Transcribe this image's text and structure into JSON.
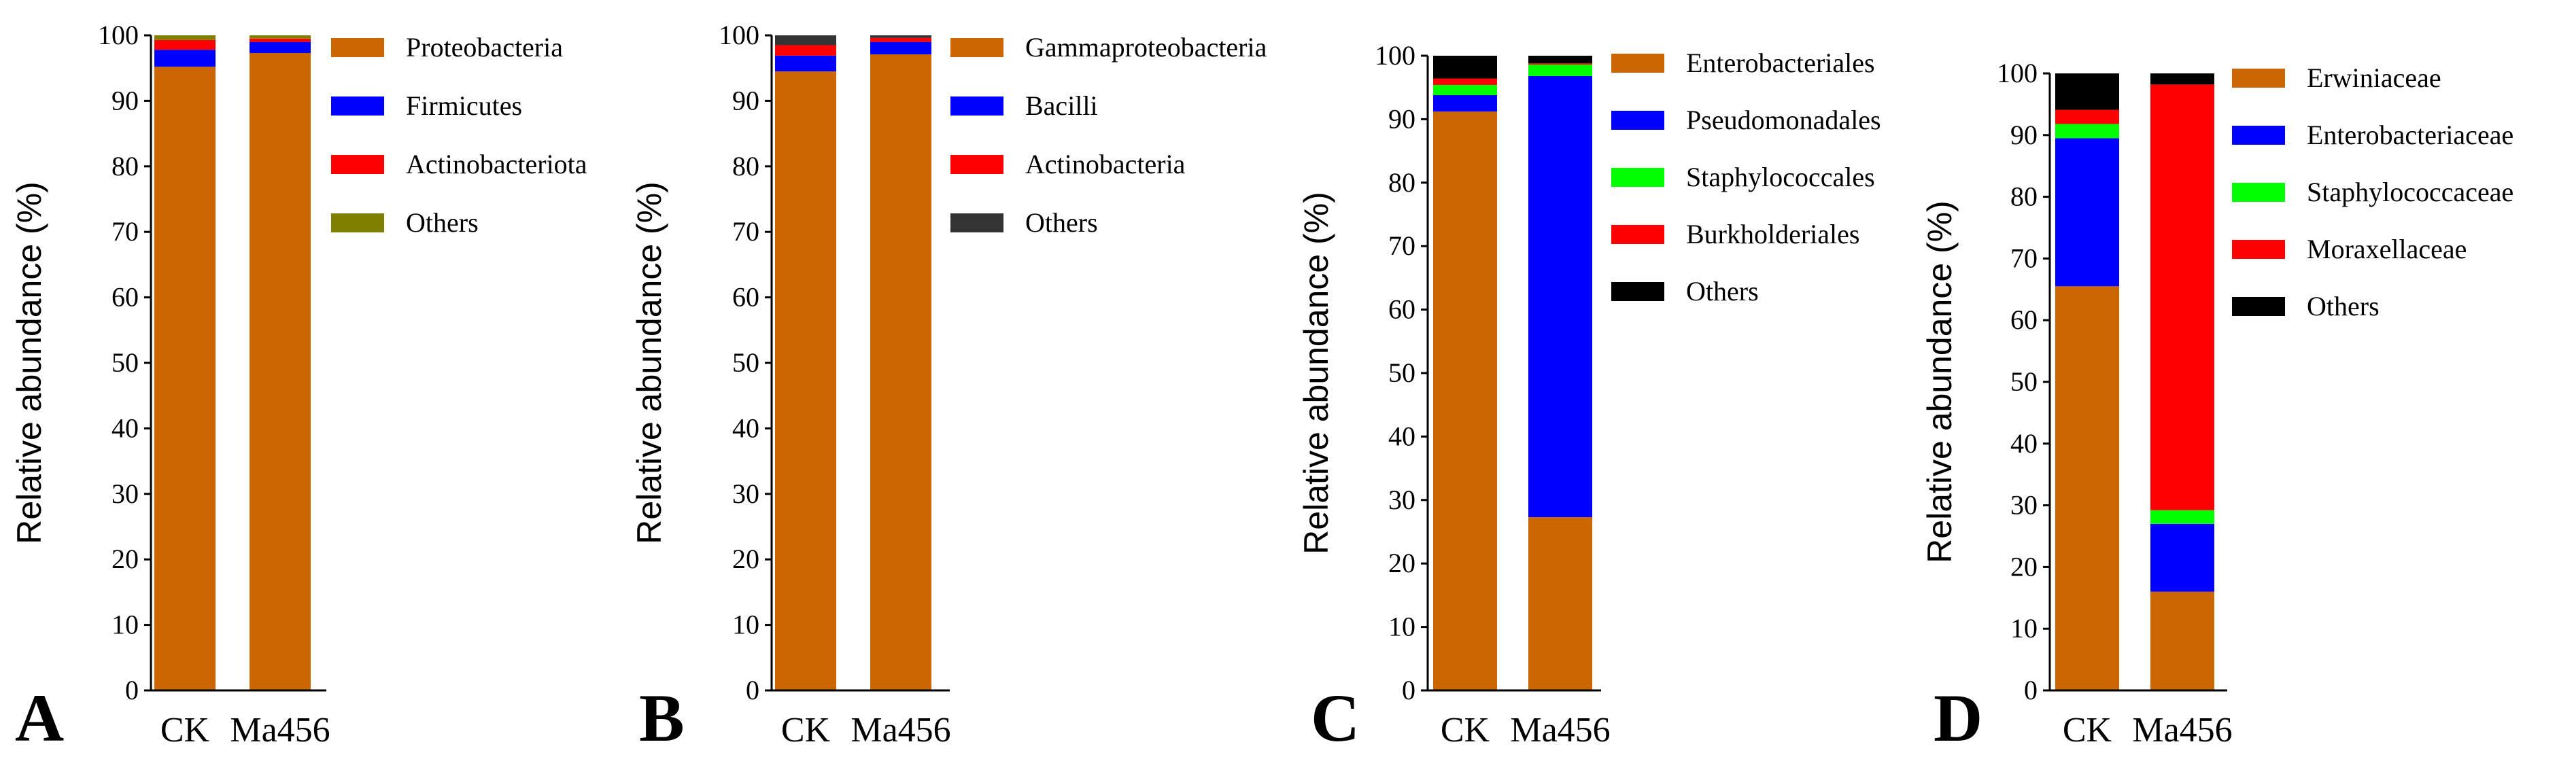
{
  "chart_data": [
    {
      "type": "bar",
      "stacked": true,
      "panel_label": "A",
      "categories": [
        "CK",
        "Ma456"
      ],
      "ylabel": "Relative abundance (%)",
      "ylim": [
        0,
        100
      ],
      "yticks": [
        0,
        10,
        20,
        30,
        40,
        50,
        60,
        70,
        80,
        90,
        100
      ],
      "legend_position": "right",
      "series": [
        {
          "name": "Proteobacteria",
          "color": "#cc6600",
          "values": [
            95.2,
            97.3
          ]
        },
        {
          "name": "Firmicutes",
          "color": "#0000ff",
          "values": [
            2.6,
            1.7
          ]
        },
        {
          "name": "Actinobacteriota",
          "color": "#ff0000",
          "values": [
            1.5,
            0.5
          ]
        },
        {
          "name": "Others",
          "color": "#808000",
          "values": [
            0.7,
            0.5
          ]
        }
      ]
    },
    {
      "type": "bar",
      "stacked": true,
      "panel_label": "B",
      "categories": [
        "CK",
        "Ma456"
      ],
      "ylabel": "Relative abundance (%)",
      "ylim": [
        0,
        100
      ],
      "yticks": [
        0,
        10,
        20,
        30,
        40,
        50,
        60,
        70,
        80,
        90,
        100
      ],
      "legend_position": "right",
      "series": [
        {
          "name": "Gammaproteobacteria",
          "color": "#cc6600",
          "values": [
            94.5,
            97.1
          ]
        },
        {
          "name": "Bacilli",
          "color": "#0000ff",
          "values": [
            2.4,
            1.9
          ]
        },
        {
          "name": "Actinobacteria",
          "color": "#ff0000",
          "values": [
            1.6,
            0.6
          ]
        },
        {
          "name": "Others",
          "color": "#333333",
          "values": [
            1.5,
            0.4
          ]
        }
      ]
    },
    {
      "type": "bar",
      "stacked": true,
      "panel_label": "C",
      "categories": [
        "CK",
        "Ma456"
      ],
      "ylabel": "Relative abundance (%)",
      "ylim": [
        0,
        100
      ],
      "yticks": [
        0,
        10,
        20,
        30,
        40,
        50,
        60,
        70,
        80,
        90,
        100
      ],
      "legend_position": "right",
      "series": [
        {
          "name": "Enterobacteriales",
          "color": "#cc6600",
          "values": [
            91.2,
            27.3
          ]
        },
        {
          "name": "Pseudomonadales",
          "color": "#0000ff",
          "values": [
            2.6,
            69.5
          ]
        },
        {
          "name": "Staphylococcales",
          "color": "#00ff00",
          "values": [
            1.6,
            1.8
          ]
        },
        {
          "name": "Burkholderiales",
          "color": "#ff0000",
          "values": [
            1.0,
            0.2
          ]
        },
        {
          "name": "Others",
          "color": "#000000",
          "values": [
            3.6,
            1.2
          ]
        }
      ]
    },
    {
      "type": "bar",
      "stacked": true,
      "panel_label": "D",
      "categories": [
        "CK",
        "Ma456"
      ],
      "ylabel": "Relative abundance (%)",
      "ylim": [
        0,
        100
      ],
      "yticks": [
        0,
        10,
        20,
        30,
        40,
        50,
        60,
        70,
        80,
        90,
        100
      ],
      "legend_position": "right",
      "series": [
        {
          "name": "Erwiniaceae",
          "color": "#cc6600",
          "values": [
            65.5,
            16.0
          ]
        },
        {
          "name": "Enterobacteriaceae",
          "color": "#0000ff",
          "values": [
            24.0,
            11.0
          ]
        },
        {
          "name": "Staphylococcaceae",
          "color": "#00ff00",
          "values": [
            2.3,
            2.2
          ]
        },
        {
          "name": "Moraxellaceae",
          "color": "#ff0000",
          "values": [
            2.3,
            69.0
          ]
        },
        {
          "name": "Others",
          "color": "#000000",
          "values": [
            6.5,
            1.8
          ]
        }
      ]
    }
  ]
}
